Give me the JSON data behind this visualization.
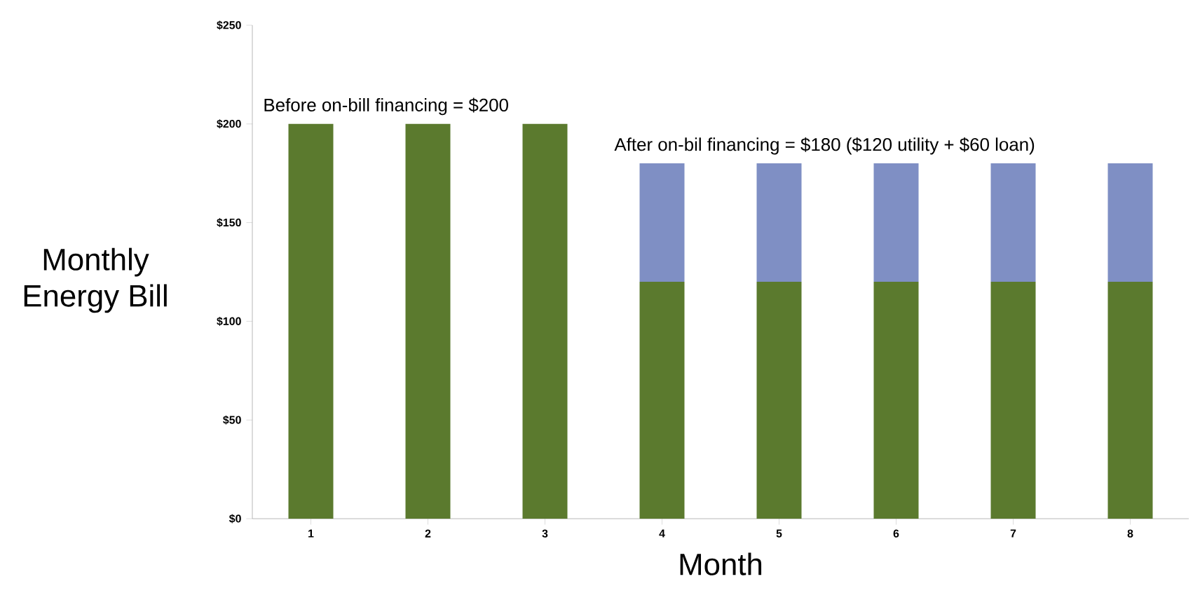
{
  "chart_data": {
    "type": "bar",
    "stacked": true,
    "xlabel": "Month",
    "ylabel": "Monthly Energy Bill",
    "categories": [
      "1",
      "2",
      "3",
      "4",
      "5",
      "6",
      "7",
      "8"
    ],
    "series": [
      {
        "color": "#5b7a2e",
        "values": [
          200,
          200,
          200,
          120,
          120,
          120,
          120,
          120
        ]
      },
      {
        "color": "#7f8fc4",
        "values": [
          null,
          null,
          null,
          60,
          60,
          60,
          60,
          60
        ]
      }
    ],
    "ylim": [
      0,
      250
    ],
    "yticks": [
      {
        "value": 0,
        "label": "$0"
      },
      {
        "value": 50,
        "label": "$50"
      },
      {
        "value": 100,
        "label": "$100"
      },
      {
        "value": 150,
        "label": "$150"
      },
      {
        "value": 200,
        "label": "$200"
      },
      {
        "value": 250,
        "label": "$250"
      }
    ],
    "annotations": [
      "Before on-bill financing = $200",
      "After on-bil financing = $180 ($120 utility + $60 loan)"
    ]
  }
}
